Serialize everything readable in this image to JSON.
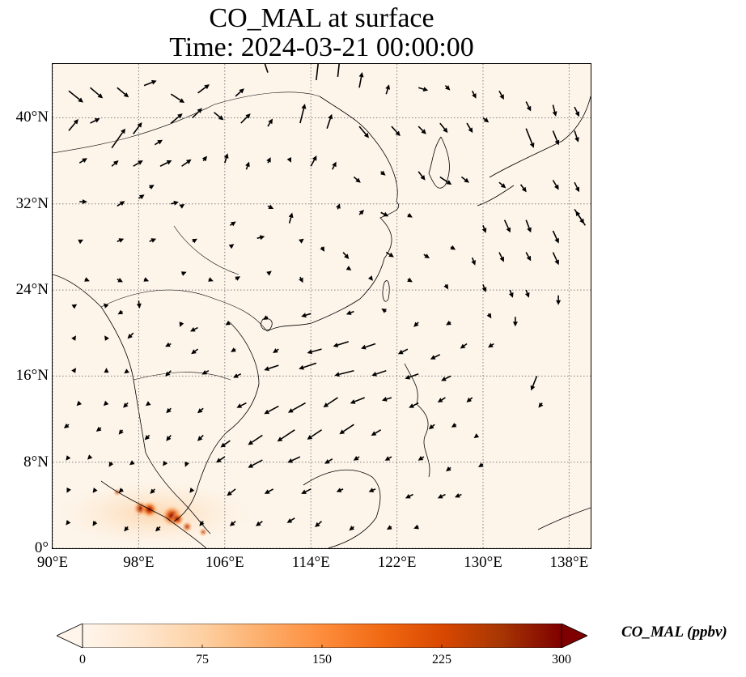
{
  "title": {
    "line1": "CO_MAL at surface",
    "line2": "Time: 2024-03-21 00:00:00"
  },
  "map": {
    "lon_range": [
      90,
      140
    ],
    "lat_range": [
      0,
      45
    ],
    "background_color": "#fdf5ea",
    "gridlines": "dotted",
    "lat_ticks": [
      {
        "value": 0,
        "label": "0°"
      },
      {
        "value": 8,
        "label": "8°N"
      },
      {
        "value": 16,
        "label": "16°N"
      },
      {
        "value": 24,
        "label": "24°N"
      },
      {
        "value": 32,
        "label": "32°N"
      },
      {
        "value": 40,
        "label": "40°N"
      }
    ],
    "lon_ticks": [
      {
        "value": 90,
        "label": "90°E"
      },
      {
        "value": 98,
        "label": "98°E"
      },
      {
        "value": 106,
        "label": "106°E"
      },
      {
        "value": 114,
        "label": "114°E"
      },
      {
        "value": 122,
        "label": "122°E"
      },
      {
        "value": 130,
        "label": "130°E"
      },
      {
        "value": 138,
        "label": "138°E"
      }
    ],
    "wind_arrows": [
      [
        91.5,
        42.5,
        1.5,
        -1.2
      ],
      [
        93.5,
        42.8,
        1.3,
        -1.1
      ],
      [
        96,
        42.8,
        1.2,
        -1.0
      ],
      [
        98.5,
        43.0,
        1.3,
        0.5
      ],
      [
        101,
        42.2,
        1.4,
        -0.9
      ],
      [
        103.5,
        42.3,
        1.2,
        0.9
      ],
      [
        107,
        42.0,
        0.9,
        0.8
      ],
      [
        110,
        44.2,
        -0.5,
        1.5
      ],
      [
        114.5,
        43.5,
        0.3,
        2.6
      ],
      [
        116.5,
        43.8,
        0.3,
        2.8
      ],
      [
        118.5,
        42.8,
        0.3,
        1.6
      ],
      [
        121,
        42.2,
        0.3,
        1.0
      ],
      [
        124,
        42.8,
        1.0,
        -0.3
      ],
      [
        126.5,
        43.0,
        0.5,
        -0.5
      ],
      [
        129,
        42.5,
        0.4,
        -0.8
      ],
      [
        131.5,
        42.5,
        0.5,
        -0.9
      ],
      [
        134,
        41.5,
        0.5,
        -1.0
      ],
      [
        136.5,
        41.2,
        0.3,
        -1.2
      ],
      [
        138.5,
        41.0,
        0.5,
        -1.0
      ],
      [
        91.5,
        38.8,
        1.0,
        1.2
      ],
      [
        93.5,
        39.5,
        1.0,
        0.5
      ],
      [
        95.5,
        37.2,
        1.4,
        2.0
      ],
      [
        97.5,
        38.5,
        0.9,
        1.2
      ],
      [
        99.5,
        37.5,
        0.8,
        0.5
      ],
      [
        101,
        39.5,
        1.2,
        1.0
      ],
      [
        103,
        40.0,
        1.0,
        1.0
      ],
      [
        105,
        40.5,
        1.0,
        -0.8
      ],
      [
        107.5,
        39.5,
        1.0,
        1.0
      ],
      [
        110,
        39.2,
        0.5,
        0.8
      ],
      [
        113,
        39.5,
        0.5,
        2.0
      ],
      [
        115.5,
        39.0,
        0.5,
        1.5
      ],
      [
        118.5,
        39.2,
        1.0,
        -1.2
      ],
      [
        121.5,
        39.2,
        0.9,
        -1.0
      ],
      [
        124,
        39.2,
        0.8,
        -0.8
      ],
      [
        126,
        39.5,
        0.8,
        -1.0
      ],
      [
        128.5,
        39.5,
        0.6,
        -1.0
      ],
      [
        130,
        40.0,
        0.6,
        -0.5
      ],
      [
        134,
        39.0,
        0.8,
        -2.0
      ],
      [
        136.5,
        38.8,
        0.6,
        -1.5
      ],
      [
        138.5,
        38.8,
        0.4,
        -1.2
      ],
      [
        92.5,
        35.8,
        0.8,
        0.5
      ],
      [
        95.5,
        35.5,
        0.7,
        0.6
      ],
      [
        97.5,
        35.5,
        1.0,
        0.6
      ],
      [
        99,
        33.5,
        0.5,
        0.3
      ],
      [
        100,
        35.5,
        1.2,
        0.6
      ],
      [
        102,
        35.5,
        1.0,
        0.7
      ],
      [
        104,
        36.0,
        0.4,
        0.5
      ],
      [
        106,
        35.8,
        0.3,
        1.0
      ],
      [
        108,
        35.2,
        0.3,
        0.8
      ],
      [
        110,
        35.8,
        0.3,
        0.6
      ],
      [
        112,
        36.2,
        0.2,
        -0.4
      ],
      [
        114,
        35.5,
        0.6,
        1.1
      ],
      [
        116,
        35.2,
        0.4,
        0.8
      ],
      [
        118,
        34.5,
        0.7,
        -0.6
      ],
      [
        120.5,
        35.0,
        0.5,
        -0.4
      ],
      [
        124,
        35.0,
        0.7,
        -0.9
      ],
      [
        126,
        34.5,
        1.2,
        -0.8
      ],
      [
        128,
        34.5,
        0.8,
        -0.6
      ],
      [
        131.5,
        34.0,
        0.7,
        -0.6
      ],
      [
        133.5,
        33.8,
        0.6,
        -0.8
      ],
      [
        136.5,
        34.2,
        0.6,
        -1.0
      ],
      [
        138.5,
        34.0,
        0.5,
        -1.0
      ],
      [
        92.5,
        32.2,
        0.8,
        0.0
      ],
      [
        96,
        31.8,
        0.8,
        0.5
      ],
      [
        98,
        32.5,
        0.6,
        0.4
      ],
      [
        101,
        32.0,
        0.8,
        0.2
      ],
      [
        102,
        31.8,
        0.3,
        0.2
      ],
      [
        106.5,
        30.0,
        0.6,
        0.4
      ],
      [
        110,
        31.8,
        0.6,
        -0.3
      ],
      [
        112,
        30.2,
        0.3,
        1.1
      ],
      [
        116.5,
        31.5,
        0.2,
        0.6
      ],
      [
        118.5,
        31.0,
        0.5,
        0.5
      ],
      [
        120.5,
        31.2,
        0.8,
        -0.4
      ],
      [
        123,
        31.0,
        0.5,
        -0.3
      ],
      [
        130,
        30.0,
        0.3,
        -0.8
      ],
      [
        132,
        30.5,
        0.6,
        -1.3
      ],
      [
        134,
        30.5,
        0.5,
        -1.3
      ],
      [
        136.5,
        29.5,
        0.6,
        -1.3
      ],
      [
        138.5,
        31.5,
        1.0,
        -1.5
      ],
      [
        139.5,
        30.0,
        -1.0,
        1.5
      ],
      [
        92.5,
        28.5,
        0.4,
        0.2
      ],
      [
        96,
        28.5,
        0.7,
        0.3
      ],
      [
        99,
        28.5,
        0.7,
        0.3
      ],
      [
        103,
        28.5,
        0.5,
        0.3
      ],
      [
        106.5,
        28.0,
        0.4,
        0.3
      ],
      [
        109,
        28.8,
        0.8,
        0.2
      ],
      [
        113,
        28.5,
        0.4,
        0.3
      ],
      [
        115,
        28.0,
        0.3,
        -0.5
      ],
      [
        117,
        27.5,
        0.6,
        -0.7
      ],
      [
        121,
        27.5,
        0.8,
        -0.5
      ],
      [
        124.5,
        27.3,
        0.6,
        -0.4
      ],
      [
        127,
        28.0,
        0.5,
        -0.3
      ],
      [
        129,
        27.0,
        0.3,
        -0.8
      ],
      [
        131.5,
        27.5,
        0.5,
        -1.0
      ],
      [
        134,
        27.5,
        0.5,
        -0.9
      ],
      [
        136.5,
        27.5,
        0.6,
        -1.3
      ],
      [
        93,
        25.0,
        0.5,
        -0.2
      ],
      [
        96,
        25.0,
        0.6,
        -0.3
      ],
      [
        98.5,
        25.0,
        0.5,
        -0.2
      ],
      [
        102,
        25.5,
        0.5,
        0.2
      ],
      [
        104.5,
        25.0,
        0.5,
        -0.2
      ],
      [
        107,
        25.0,
        0.5,
        0.3
      ],
      [
        110,
        25.5,
        0.4,
        0.3
      ],
      [
        113,
        25.2,
        0.3,
        -0.6
      ],
      [
        117.5,
        26.0,
        0.3,
        -0.2
      ],
      [
        119.5,
        25.2,
        0.3,
        -0.4
      ],
      [
        123,
        25.0,
        0.5,
        -0.3
      ],
      [
        126.5,
        24.5,
        0.3,
        -0.5
      ],
      [
        130,
        24.5,
        0.3,
        -0.8
      ],
      [
        132.5,
        24.0,
        0.3,
        -0.8
      ],
      [
        134,
        24.0,
        0.3,
        -0.8
      ],
      [
        137,
        23.5,
        0.0,
        -1.0
      ],
      [
        92,
        22.5,
        0.3,
        0.2
      ],
      [
        95,
        22.5,
        -0.3,
        0.3
      ],
      [
        96.5,
        22.0,
        -0.5,
        -0.3
      ],
      [
        98,
        23.0,
        0.1,
        -0.8
      ],
      [
        102,
        21.0,
        -0.2,
        -0.5
      ],
      [
        103.5,
        20.5,
        -0.8,
        -0.4
      ],
      [
        106.5,
        21.0,
        -0.5,
        -0.3
      ],
      [
        110,
        21.5,
        -0.5,
        -0.3
      ],
      [
        114,
        21.8,
        -1.0,
        -0.3
      ],
      [
        118,
        22.0,
        -0.8,
        -0.3
      ],
      [
        121,
        22.0,
        -0.5,
        0.3
      ],
      [
        124,
        21.0,
        -0.5,
        -0.5
      ],
      [
        127,
        21.0,
        -0.5,
        -0.3
      ],
      [
        130.5,
        21.8,
        0.3,
        -0.5
      ],
      [
        133,
        21.5,
        0.0,
        -1.0
      ],
      [
        92,
        19.5,
        0.2,
        0.3
      ],
      [
        95,
        19.5,
        -0.2,
        0.3
      ],
      [
        97.5,
        20.0,
        -0.6,
        -0.6
      ],
      [
        101,
        19.0,
        -0.6,
        -0.3
      ],
      [
        103.5,
        18.5,
        -0.7,
        -0.5
      ],
      [
        107,
        18.5,
        -0.5,
        -0.3
      ],
      [
        111,
        18.5,
        -0.6,
        -0.4
      ],
      [
        115,
        18.5,
        -1.5,
        -0.4
      ],
      [
        117.5,
        19.2,
        -1.6,
        -0.5
      ],
      [
        120,
        19.0,
        -1.5,
        -0.5
      ],
      [
        123,
        18.5,
        -1.0,
        -0.5
      ],
      [
        126,
        18.0,
        -1.0,
        -0.5
      ],
      [
        128.5,
        19.0,
        -0.7,
        -0.5
      ],
      [
        131,
        19.0,
        -0.6,
        -0.4
      ],
      [
        92,
        16.5,
        0.2,
        0.3
      ],
      [
        95,
        16.5,
        0.0,
        0.3
      ],
      [
        97,
        16.5,
        -0.4,
        -0.3
      ],
      [
        101,
        16.5,
        -0.6,
        -0.6
      ],
      [
        104.5,
        16.5,
        -0.7,
        -0.4
      ],
      [
        107.5,
        16.2,
        -0.8,
        -0.4
      ],
      [
        111,
        17.0,
        -1.5,
        -0.5
      ],
      [
        114.5,
        17.2,
        -1.8,
        -0.6
      ],
      [
        118,
        16.5,
        -2.0,
        -0.5
      ],
      [
        121,
        16.5,
        -1.5,
        -0.5
      ],
      [
        124,
        16.2,
        -1.4,
        -0.5
      ],
      [
        127,
        16.0,
        -1.0,
        -0.5
      ],
      [
        135,
        16.0,
        -0.6,
        -1.5
      ],
      [
        92.5,
        13.5,
        -0.3,
        -0.3
      ],
      [
        95,
        13.5,
        -0.3,
        -0.3
      ],
      [
        97,
        13.5,
        -0.5,
        -0.5
      ],
      [
        99,
        13.5,
        -0.4,
        -0.3
      ],
      [
        101,
        13.0,
        -0.5,
        -0.5
      ],
      [
        104,
        13.0,
        -0.6,
        -0.5
      ],
      [
        108,
        13.5,
        -1.0,
        -0.5
      ],
      [
        111,
        13.2,
        -1.5,
        -0.8
      ],
      [
        113.5,
        13.5,
        -1.8,
        -1.0
      ],
      [
        116.5,
        14.0,
        -1.5,
        -1.0
      ],
      [
        119,
        14.0,
        -1.5,
        -0.6
      ],
      [
        121.5,
        14.0,
        -1.0,
        -0.3
      ],
      [
        124,
        13.5,
        -1.0,
        -0.5
      ],
      [
        126.5,
        14.0,
        -0.8,
        -0.5
      ],
      [
        129,
        14.0,
        -0.6,
        -0.5
      ],
      [
        135.5,
        13.5,
        -0.4,
        -0.5
      ],
      [
        91.5,
        11.5,
        -0.5,
        -0.4
      ],
      [
        94.5,
        11.2,
        -0.5,
        -0.4
      ],
      [
        96.5,
        11.0,
        -0.4,
        -0.5
      ],
      [
        99,
        10.5,
        -0.5,
        -0.5
      ],
      [
        101,
        10.5,
        -0.5,
        -0.6
      ],
      [
        104,
        10.5,
        -0.6,
        -0.6
      ],
      [
        106.5,
        10.0,
        -1.0,
        -0.7
      ],
      [
        109.5,
        10.5,
        -1.5,
        -1.0
      ],
      [
        112.5,
        11.0,
        -1.8,
        -1.2
      ],
      [
        115,
        11.0,
        -1.5,
        -1.0
      ],
      [
        118,
        11.5,
        -1.5,
        -1.0
      ],
      [
        120.5,
        11.0,
        -1.0,
        -0.6
      ],
      [
        125.5,
        11.5,
        -0.6,
        -0.5
      ],
      [
        127.5,
        11.5,
        -0.5,
        -0.3
      ],
      [
        129.5,
        10.5,
        -0.4,
        -0.3
      ],
      [
        91.5,
        8.5,
        -0.3,
        -0.4
      ],
      [
        93.5,
        8.5,
        -0.3,
        -0.3
      ],
      [
        95.5,
        8.0,
        -0.3,
        -0.5
      ],
      [
        97.5,
        8.0,
        -0.4,
        -0.3
      ],
      [
        100.5,
        8.0,
        -0.3,
        -0.4
      ],
      [
        102.5,
        8.0,
        -0.2,
        -0.5
      ],
      [
        106,
        8.5,
        -0.9,
        -0.6
      ],
      [
        109.5,
        8.2,
        -1.5,
        -0.8
      ],
      [
        113,
        8.5,
        -1.3,
        -0.6
      ],
      [
        116,
        8.3,
        -0.8,
        -0.5
      ],
      [
        118.5,
        8.5,
        -0.6,
        -0.4
      ],
      [
        121.5,
        8.5,
        -0.7,
        -0.4
      ],
      [
        124.5,
        8.5,
        -0.6,
        -0.4
      ],
      [
        127,
        7.5,
        -0.5,
        -0.4
      ],
      [
        130,
        7.8,
        -0.5,
        -0.3
      ],
      [
        91.5,
        5.5,
        -0.2,
        -0.4
      ],
      [
        94,
        5.5,
        -0.3,
        -0.4
      ],
      [
        96.5,
        5.5,
        -0.4,
        -0.4
      ],
      [
        99.5,
        5.5,
        -0.5,
        -0.5
      ],
      [
        103,
        5.5,
        -0.3,
        -0.4
      ],
      [
        107,
        5.5,
        -0.9,
        -0.7
      ],
      [
        110.5,
        5.5,
        -0.9,
        -0.5
      ],
      [
        114,
        5.5,
        -1.0,
        -0.5
      ],
      [
        117,
        5.5,
        -0.7,
        -0.3
      ],
      [
        120,
        5.5,
        -0.7,
        -0.3
      ],
      [
        123.5,
        5.0,
        -0.8,
        -0.4
      ],
      [
        126.5,
        5.0,
        -0.8,
        -0.4
      ],
      [
        128,
        5.0,
        -0.7,
        -0.3
      ],
      [
        91.5,
        2.5,
        -0.3,
        -0.4
      ],
      [
        94,
        2.5,
        -0.3,
        -0.5
      ],
      [
        97,
        2.0,
        -0.4,
        -0.5
      ],
      [
        100,
        2.0,
        -0.5,
        -0.5
      ],
      [
        104,
        2.5,
        -0.4,
        -0.5
      ],
      [
        107,
        2.5,
        -0.6,
        -0.5
      ],
      [
        109.5,
        2.5,
        -0.7,
        -0.5
      ],
      [
        112.5,
        2.8,
        -0.8,
        -0.5
      ],
      [
        115,
        2.5,
        -0.7,
        -0.6
      ],
      [
        118,
        2.0,
        -0.5,
        -0.4
      ],
      [
        121.5,
        2.0,
        -0.5,
        -0.3
      ],
      [
        124,
        2.0,
        -0.5,
        -0.2
      ]
    ],
    "co_hotspots": [
      {
        "lon": 98.2,
        "lat": 3.7,
        "value": 180
      },
      {
        "lon": 99.0,
        "lat": 3.6,
        "value": 220
      },
      {
        "lon": 101.1,
        "lat": 3.0,
        "value": 300
      },
      {
        "lon": 101.6,
        "lat": 2.7,
        "value": 150
      },
      {
        "lon": 102.5,
        "lat": 2.0,
        "value": 100
      },
      {
        "lon": 96.0,
        "lat": 5.2,
        "value": 45
      },
      {
        "lon": 104.0,
        "lat": 1.5,
        "value": 60
      }
    ]
  },
  "colorbar": {
    "label": "CO_MAL (ppbv)",
    "min": 0,
    "max": 300,
    "extend": "both",
    "colormap": [
      "#fff5eb",
      "#fee6ce",
      "#fdd0a2",
      "#fdae6b",
      "#fd8d3c",
      "#f16913",
      "#d94801",
      "#a63603",
      "#7f0000"
    ],
    "ticks": [
      {
        "value": 0,
        "label": "0"
      },
      {
        "value": 75,
        "label": "75"
      },
      {
        "value": 150,
        "label": "150"
      },
      {
        "value": 225,
        "label": "225"
      },
      {
        "value": 300,
        "label": "300"
      }
    ]
  }
}
